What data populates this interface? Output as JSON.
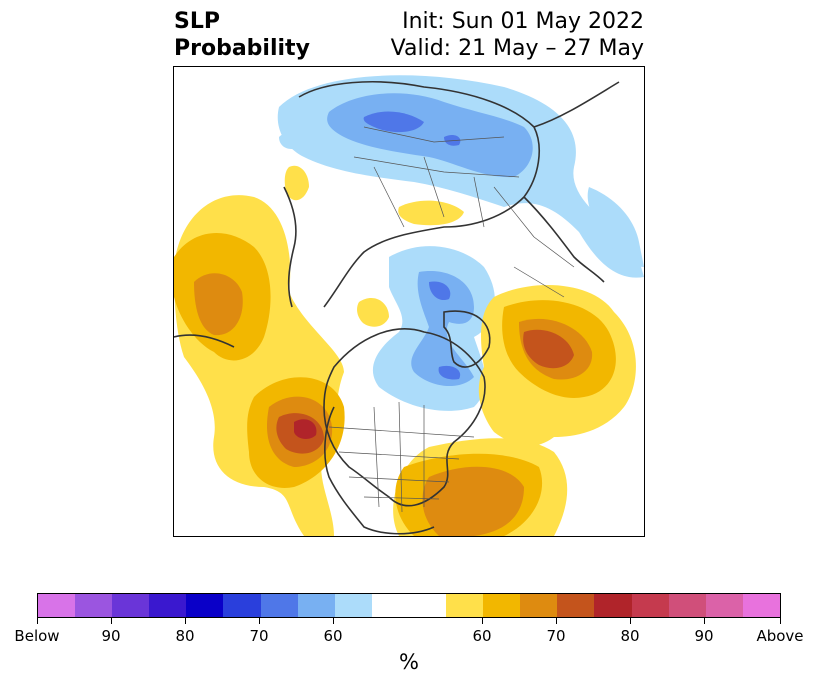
{
  "title": {
    "left_line1": "SLP",
    "left_line2": "Probability",
    "right_line1": "Init: Sun 01 May 2022",
    "right_line2": "Valid: 21 May – 27 May"
  },
  "colorbar": {
    "unit": "%",
    "tick_labels": [
      "Below",
      "90",
      "80",
      "70",
      "60",
      "60",
      "70",
      "80",
      "90",
      "Above"
    ],
    "colors": [
      "#d873e8",
      "#9b55e0",
      "#6a35d8",
      "#3a18cf",
      "#0a00c8",
      "#2a3fdc",
      "#4f77e8",
      "#78b0f2",
      "#acdcfa",
      "#ffffff",
      "#ffe04a",
      "#f2b700",
      "#de8b10",
      "#c4541c",
      "#b0242a",
      "#c53a4e",
      "#d04f7a",
      "#db62a8",
      "#e872dd"
    ]
  },
  "map": {
    "projection": "north-polar-stereographic",
    "coastline_color": "#333333",
    "border_color": "#333333"
  }
}
